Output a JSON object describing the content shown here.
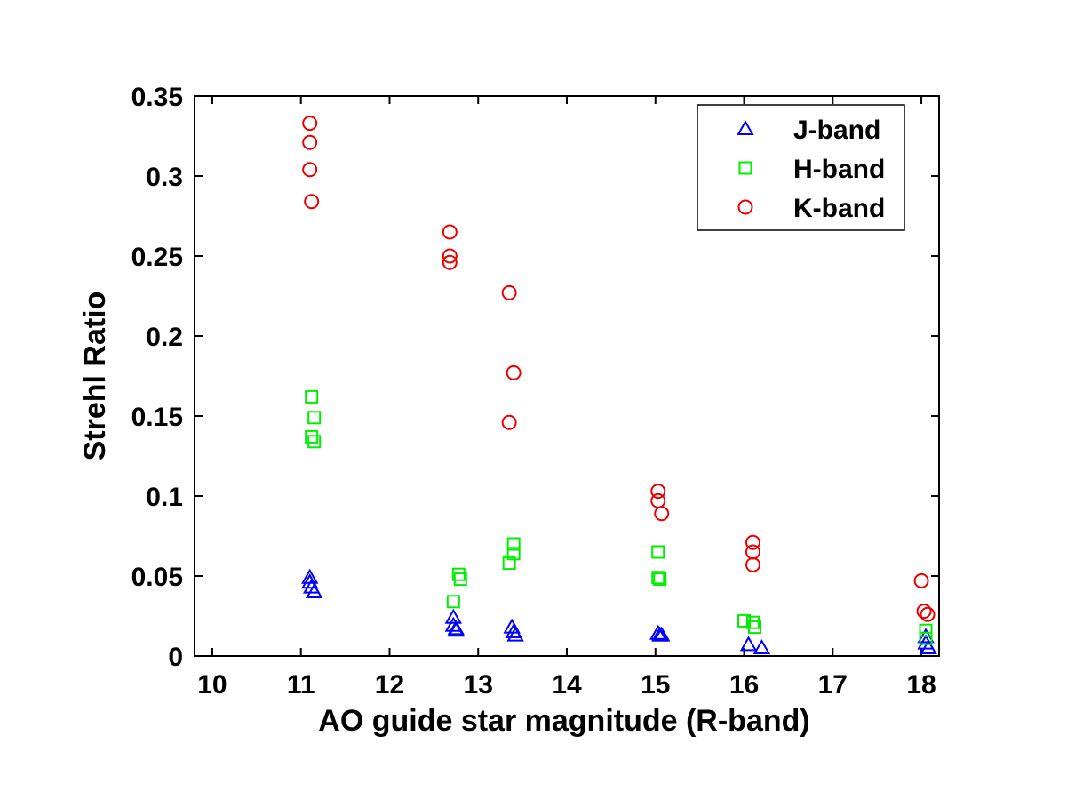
{
  "chart_data": {
    "type": "scatter",
    "xlabel": "AO guide star magnitude (R-band)",
    "ylabel": "Strehl Ratio",
    "xlim": [
      9.8,
      18.2
    ],
    "ylim": [
      0,
      0.35
    ],
    "x_ticks": [
      10,
      11,
      12,
      13,
      14,
      15,
      16,
      17,
      18
    ],
    "x_tick_labels": [
      "10",
      "11",
      "12",
      "13",
      "14",
      "15",
      "16",
      "17",
      "18"
    ],
    "y_ticks": [
      0,
      0.05,
      0.1,
      0.15,
      0.2,
      0.25,
      0.3,
      0.35
    ],
    "y_tick_labels": [
      "0",
      "0.05",
      "0.1",
      "0.15",
      "0.2",
      "0.25",
      "0.3",
      "0.35"
    ],
    "grid": false,
    "legend_position": "top-right",
    "series": [
      {
        "name": "J-band",
        "marker": "triangle",
        "color": "#0000ff",
        "points": [
          [
            11.1,
            0.049
          ],
          [
            11.1,
            0.046
          ],
          [
            11.12,
            0.043
          ],
          [
            11.15,
            0.04
          ],
          [
            12.72,
            0.024
          ],
          [
            12.72,
            0.019
          ],
          [
            12.75,
            0.017
          ],
          [
            12.75,
            0.016
          ],
          [
            13.38,
            0.018
          ],
          [
            13.4,
            0.015
          ],
          [
            13.42,
            0.013
          ],
          [
            15.03,
            0.014
          ],
          [
            15.05,
            0.013
          ],
          [
            15.07,
            0.013
          ],
          [
            16.05,
            0.007
          ],
          [
            16.2,
            0.005
          ],
          [
            18.05,
            0.012
          ],
          [
            18.05,
            0.008
          ],
          [
            18.08,
            0.005
          ]
        ]
      },
      {
        "name": "H-band",
        "marker": "square",
        "color": "#00ee00",
        "points": [
          [
            11.12,
            0.162
          ],
          [
            11.15,
            0.149
          ],
          [
            11.12,
            0.137
          ],
          [
            11.15,
            0.134
          ],
          [
            12.72,
            0.034
          ],
          [
            12.78,
            0.051
          ],
          [
            12.8,
            0.048
          ],
          [
            13.35,
            0.058
          ],
          [
            13.4,
            0.07
          ],
          [
            13.4,
            0.064
          ],
          [
            15.03,
            0.065
          ],
          [
            15.03,
            0.049
          ],
          [
            15.05,
            0.048
          ],
          [
            16.0,
            0.022
          ],
          [
            16.1,
            0.021
          ],
          [
            16.12,
            0.018
          ],
          [
            18.05,
            0.016
          ],
          [
            18.05,
            0.011
          ]
        ]
      },
      {
        "name": "K-band",
        "marker": "circle",
        "color": "#ee0000",
        "points": [
          [
            11.1,
            0.333
          ],
          [
            11.1,
            0.321
          ],
          [
            11.1,
            0.304
          ],
          [
            11.12,
            0.284
          ],
          [
            12.68,
            0.265
          ],
          [
            12.68,
            0.25
          ],
          [
            12.68,
            0.246
          ],
          [
            13.35,
            0.227
          ],
          [
            13.4,
            0.177
          ],
          [
            13.35,
            0.146
          ],
          [
            15.03,
            0.103
          ],
          [
            15.03,
            0.097
          ],
          [
            15.07,
            0.089
          ],
          [
            16.1,
            0.071
          ],
          [
            16.1,
            0.065
          ],
          [
            16.1,
            0.057
          ],
          [
            18.0,
            0.047
          ],
          [
            18.03,
            0.028
          ],
          [
            18.07,
            0.026
          ]
        ]
      }
    ]
  }
}
